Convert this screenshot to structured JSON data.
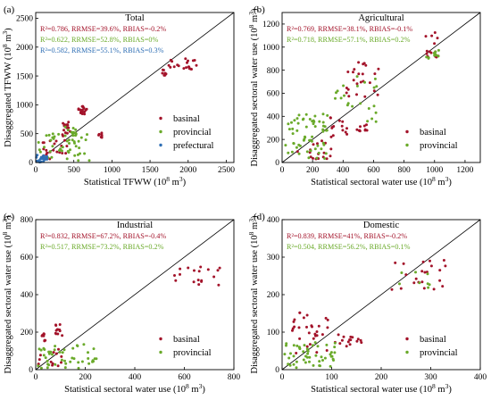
{
  "colors": {
    "basinal": "#a3132a",
    "provincial": "#6aaa2a",
    "prefectural": "#2f6fb5",
    "axis": "#000000"
  },
  "chart_data": [
    {
      "type": "scatter",
      "panel_label": "(a)",
      "title": "Total",
      "xlabel_main": "Statistical TFWW (10",
      "xlabel_sup": "8",
      "xlabel_end": " m",
      "xlabel_sup2": "3",
      "xlabel_close": ")",
      "ylabel_main": "Disaggregated TFWW (10",
      "ylabel_sup": "8",
      "ylabel_end": " m",
      "ylabel_sup2": "3",
      "ylabel_close": ")",
      "xlim": [
        0,
        2600
      ],
      "ylim": [
        0,
        2600
      ],
      "xticks": [
        0,
        500,
        1000,
        1500,
        2000,
        2500
      ],
      "yticks": [
        0,
        500,
        1000,
        1500,
        2000,
        2500
      ],
      "grid": false,
      "one_to_one_line": true,
      "stats": [
        {
          "series": "basinal",
          "text": "R²=0.786, RRMSE=39.6%, RBIAS=-0.2%"
        },
        {
          "series": "provincial",
          "text": "R²=0.622, RRMSE=52.8%, RBIAS=0%"
        },
        {
          "series": "prefectural",
          "text": "R²=0.582, RRMSE=55.1%, RBIAS=0.3%"
        }
      ],
      "legend": {
        "placement": "bottom-right",
        "entries": [
          "basinal",
          "provincial",
          "prefectural"
        ]
      },
      "clusters": [
        {
          "series": "basinal",
          "n": 20,
          "x": [
            1700,
            2120
          ],
          "y": [
            1580,
            1800
          ]
        },
        {
          "series": "basinal",
          "n": 8,
          "x": [
            1620,
            1730
          ],
          "y": [
            1500,
            1620
          ]
        },
        {
          "series": "basinal",
          "n": 16,
          "x": [
            560,
            680
          ],
          "y": [
            840,
            980
          ]
        },
        {
          "series": "basinal",
          "n": 18,
          "x": [
            350,
            450
          ],
          "y": [
            380,
            700
          ]
        },
        {
          "series": "basinal",
          "n": 8,
          "x": [
            800,
            900
          ],
          "y": [
            420,
            520
          ]
        },
        {
          "series": "basinal",
          "n": 20,
          "x": [
            60,
            420
          ],
          "y": [
            60,
            380
          ]
        },
        {
          "series": "provincial",
          "n": 45,
          "x": [
            20,
            720
          ],
          "y": [
            20,
            520
          ]
        },
        {
          "series": "provincial",
          "n": 12,
          "x": [
            380,
            560
          ],
          "y": [
            360,
            620
          ]
        },
        {
          "series": "prefectural",
          "n": 25,
          "x": [
            5,
            150
          ],
          "y": [
            5,
            130
          ]
        }
      ]
    },
    {
      "type": "scatter",
      "panel_label": "(b)",
      "title": "Agricultural",
      "xlabel_main": "Statistical sectoral water use (10",
      "xlabel_sup": "8",
      "xlabel_end": " m",
      "xlabel_sup2": "3",
      "xlabel_close": ")",
      "ylabel_main": "Disaggregated sectoral water use (10",
      "ylabel_sup": "8",
      "ylabel_end": " m",
      "ylabel_sup2": "3",
      "ylabel_close": ")",
      "xlim": [
        0,
        1300
      ],
      "ylim": [
        0,
        1300
      ],
      "xticks": [
        0,
        200,
        400,
        600,
        800,
        1000,
        1200
      ],
      "yticks": [
        0,
        200,
        400,
        600,
        800,
        1000,
        1200
      ],
      "grid": false,
      "one_to_one_line": true,
      "stats": [
        {
          "series": "basinal",
          "text": "R²=0.769, RRMSE=38.1%, RBIAS=-0.1%"
        },
        {
          "series": "provincial",
          "text": "R²=0.718, RRMSE=57.1%, RBIAS=0.2%"
        }
      ],
      "legend": {
        "placement": "bottom-right",
        "entries": [
          "basinal",
          "provincial"
        ]
      },
      "clusters": [
        {
          "series": "basinal",
          "n": 14,
          "x": [
            940,
            1040
          ],
          "y": [
            900,
            1130
          ]
        },
        {
          "series": "basinal",
          "n": 24,
          "x": [
            420,
            650
          ],
          "y": [
            560,
            880
          ]
        },
        {
          "series": "basinal",
          "n": 10,
          "x": [
            480,
            560
          ],
          "y": [
            230,
            330
          ]
        },
        {
          "series": "basinal",
          "n": 14,
          "x": [
            300,
            430
          ],
          "y": [
            220,
            420
          ]
        },
        {
          "series": "basinal",
          "n": 18,
          "x": [
            100,
            330
          ],
          "y": [
            30,
            200
          ]
        },
        {
          "series": "provincial",
          "n": 60,
          "x": [
            20,
            300
          ],
          "y": [
            30,
            420
          ]
        },
        {
          "series": "provincial",
          "n": 22,
          "x": [
            320,
            640
          ],
          "y": [
            330,
            760
          ]
        },
        {
          "series": "provincial",
          "n": 10,
          "x": [
            940,
            1030
          ],
          "y": [
            900,
            1000
          ]
        }
      ]
    },
    {
      "type": "scatter",
      "panel_label": "(c)",
      "title": "Industrial",
      "xlabel_main": "Statistical sectoral water use (10",
      "xlabel_sup": "8",
      "xlabel_end": " m",
      "xlabel_sup2": "3",
      "xlabel_close": ")",
      "ylabel_main": "Disaggregated sectoral water use (10",
      "ylabel_sup": "8",
      "ylabel_end": " m",
      "ylabel_sup2": "3",
      "ylabel_close": ")",
      "xlim": [
        0,
        800
      ],
      "ylim": [
        0,
        800
      ],
      "xticks": [
        0,
        200,
        400,
        600,
        800
      ],
      "yticks": [
        0,
        200,
        400,
        600,
        800
      ],
      "grid": false,
      "one_to_one_line": true,
      "stats": [
        {
          "series": "basinal",
          "text": "R²=0.832, RRMSE=67.2%, RBIAS=-0.4%"
        },
        {
          "series": "provincial",
          "text": "R²=0.517, RRMSE=73.2%, RBIAS=0.2%"
        }
      ],
      "legend": {
        "placement": "bottom-right",
        "entries": [
          "basinal",
          "provincial"
        ]
      },
      "clusters": [
        {
          "series": "basinal",
          "n": 18,
          "x": [
            560,
            760
          ],
          "y": [
            450,
            560
          ]
        },
        {
          "series": "basinal",
          "n": 12,
          "x": [
            80,
            110
          ],
          "y": [
            170,
            245
          ]
        },
        {
          "series": "basinal",
          "n": 8,
          "x": [
            25,
            40
          ],
          "y": [
            150,
            200
          ]
        },
        {
          "series": "basinal",
          "n": 14,
          "x": [
            10,
            120
          ],
          "y": [
            20,
            120
          ]
        },
        {
          "series": "provincial",
          "n": 45,
          "x": [
            5,
            250
          ],
          "y": [
            5,
            140
          ]
        }
      ]
    },
    {
      "type": "scatter",
      "panel_label": "(d)",
      "title": "Domestic",
      "xlabel_main": "Statistical sectoral water use (10",
      "xlabel_sup": "8",
      "xlabel_end": " m",
      "xlabel_sup2": "3",
      "xlabel_close": ")",
      "ylabel_main": "Disaggregated sectoral water use (10",
      "ylabel_sup": "8",
      "ylabel_end": " m",
      "ylabel_sup2": "3",
      "ylabel_close": ")",
      "xlim": [
        0,
        400
      ],
      "ylim": [
        0,
        400
      ],
      "xticks": [
        0,
        100,
        200,
        300,
        400
      ],
      "yticks": [
        0,
        100,
        200,
        300,
        400
      ],
      "grid": false,
      "one_to_one_line": true,
      "stats": [
        {
          "series": "basinal",
          "text": "R²=0.839, RRMSE=41%, RBIAS=-0.2%"
        },
        {
          "series": "provincial",
          "text": "R²=0.504, RRMSE=56.2%, RBIAS=0.1%"
        }
      ],
      "legend": {
        "placement": "bottom-right",
        "entries": [
          "basinal",
          "provincial"
        ]
      },
      "clusters": [
        {
          "series": "basinal",
          "n": 22,
          "x": [
            220,
            330
          ],
          "y": [
            210,
            295
          ]
        },
        {
          "series": "basinal",
          "n": 30,
          "x": [
            20,
            95
          ],
          "y": [
            40,
            155
          ]
        },
        {
          "series": "basinal",
          "n": 16,
          "x": [
            100,
            165
          ],
          "y": [
            60,
            95
          ]
        },
        {
          "series": "provincial",
          "n": 50,
          "x": [
            5,
            110
          ],
          "y": [
            5,
            75
          ]
        },
        {
          "series": "provincial",
          "n": 8,
          "x": [
            230,
            300
          ],
          "y": [
            215,
            265
          ]
        }
      ]
    }
  ]
}
